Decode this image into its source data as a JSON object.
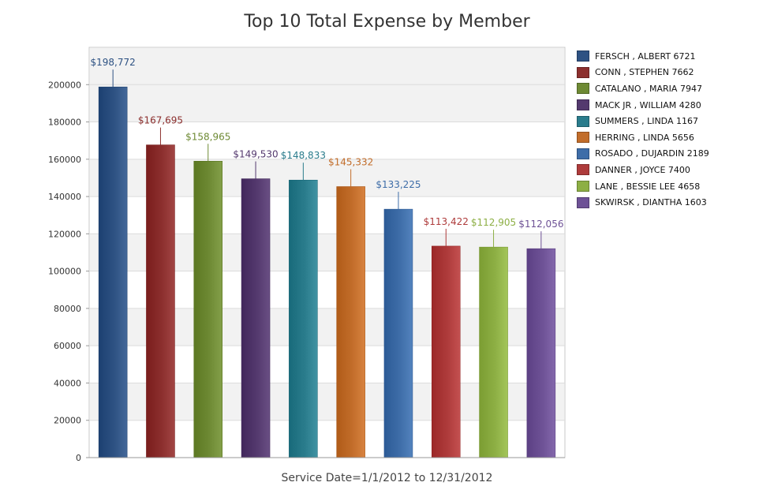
{
  "chart_data": {
    "type": "bar",
    "title": "Top 10 Total Expense by Member",
    "xlabel": "Service Date=1/1/2012 to 12/31/2012",
    "ylabel": "",
    "ylim": [
      0,
      220000
    ],
    "yticks": [
      0,
      20000,
      40000,
      60000,
      80000,
      100000,
      120000,
      140000,
      160000,
      180000,
      200000
    ],
    "ytick_labels": [
      "0",
      "20000",
      "40000",
      "60000",
      "80000",
      "100000",
      "120000",
      "140000",
      "160000",
      "180000",
      "200000"
    ],
    "grid": "horizontal",
    "legend_position": "right",
    "categories": [
      "FERSCH , ALBERT  6721",
      "CONN , STEPHEN  7662",
      "CATALANO , MARIA  7947",
      "MACK JR , WILLIAM  4280",
      "SUMMERS , LINDA  1167",
      "HERRING , LINDA  5656",
      "ROSADO , DUJARDIN  2189",
      "DANNER , JOYCE  7400",
      "LANE , BESSIE LEE  4658",
      "SKWIRSK , DIANTHA  1603"
    ],
    "values": [
      198772,
      167695,
      158965,
      149530,
      148833,
      145332,
      133225,
      113422,
      112905,
      112056
    ],
    "data_labels": [
      "$198,772",
      "$167,695",
      "$158,965",
      "$149,530",
      "$148,833",
      "$145,332",
      "$133,225",
      "$113,422",
      "$112,905",
      "$112,056"
    ],
    "colors": [
      "#2E5283",
      "#8C2F2E",
      "#6E8A34",
      "#54396E",
      "#2A7C8C",
      "#C26D2A",
      "#3E6DA8",
      "#AE3B3B",
      "#8DAF44",
      "#6E5296"
    ],
    "label_colors": [
      "#2E5283",
      "#8C2F2E",
      "#6E8A34",
      "#54396E",
      "#2A7C8C",
      "#C26D2A",
      "#3E6DA8",
      "#AE3B3B",
      "#8DAF44",
      "#6E5296"
    ]
  }
}
